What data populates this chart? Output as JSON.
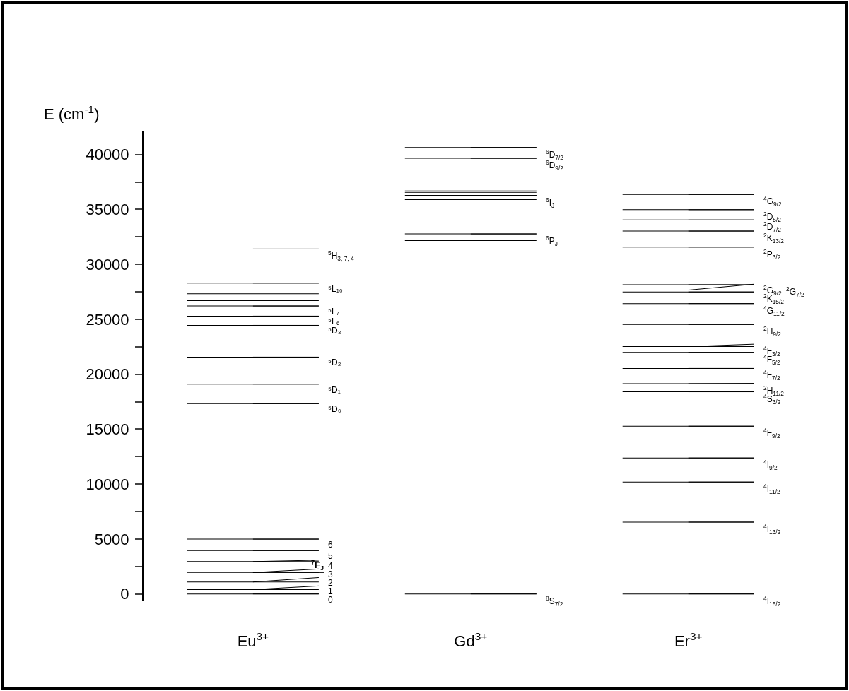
{
  "chart_data": {
    "type": "bar",
    "ylabel": "E (cm$^{-1}$)",
    "categories": [
      "Eu$^{3+}$",
      "Gd$^{3+}$",
      "Er$^{3+}$"
    ],
    "ylim": [
      -600,
      42100
    ],
    "yticks": [
      0,
      {
        "value": 2500,
        "label": null
      },
      5000,
      {
        "value": 7500,
        "label": null
      },
      10000,
      {
        "value": 12500,
        "label": null
      },
      15000,
      {
        "value": 17500,
        "label": null
      },
      20000,
      {
        "value": 22500,
        "label": null
      },
      25000,
      {
        "value": 27500,
        "label": null
      },
      30000,
      {
        "value": 32500,
        "label": null
      },
      35000,
      {
        "value": 37500,
        "label": null
      },
      40000
    ],
    "series": [
      {
        "color": "#000000",
        "x": [
          "Eu$^{3+}$",
          "Eu$^{3+}$",
          "Eu$^{3+}$",
          "Eu$^{3+}$",
          "Eu$^{3+}$",
          "Eu$^{3+}$",
          "Eu$^{3+}$",
          "Eu$^{3+}$",
          "Eu$^{3+}$",
          "Eu$^{3+}$",
          "Eu$^{3+}$",
          "Eu$^{3+}$",
          "Eu$^{3+}$",
          "Eu$^{3+}$",
          "Eu$^{3+}$",
          "Eu$^{3+}$",
          "Eu$^{3+}$",
          "Eu$^{3+}$"
        ],
        "base": [
          0,
          400,
          1090,
          1950,
          2950,
          3950,
          4990,
          17320,
          19100,
          21560,
          24450,
          25290,
          26210,
          26700,
          27230,
          27350,
          28290,
          31400
        ],
        "values": [
          0,
          0,
          0,
          0,
          0,
          0,
          0,
          0,
          0,
          0,
          0,
          0,
          0,
          0,
          0,
          0,
          0,
          0
        ]
      },
      {
        "color": "#000000",
        "x": [
          "Gd$^{3+}$",
          "Gd$^{3+}$",
          "Gd$^{3+}$",
          "Gd$^{3+}$",
          "Gd$^{3+}$",
          "Gd$^{3+}$",
          "Gd$^{3+}$",
          "Gd$^{3+}$",
          "Gd$^{3+}$",
          "Gd$^{3+}$"
        ],
        "base": [
          0,
          32160,
          32770,
          33320,
          35890,
          36280,
          36560,
          36680,
          39650,
          40640
        ],
        "values": [
          0,
          0,
          0,
          0,
          0,
          0,
          0,
          0,
          0,
          0
        ]
      },
      {
        "color": "#000000",
        "x": [
          "Er$^{3+}$",
          "Er$^{3+}$",
          "Er$^{3+}$",
          "Er$^{3+}$",
          "Er$^{3+}$",
          "Er$^{3+}$",
          "Er$^{3+}$",
          "Er$^{3+}$",
          "Er$^{3+}$",
          "Er$^{3+}$",
          "Er$^{3+}$",
          "Er$^{3+}$",
          "Er$^{3+}$",
          "Er$^{3+}$",
          "Er$^{3+}$",
          "Er$^{3+}$",
          "Er$^{3+}$",
          "Er$^{3+}$",
          "Er$^{3+}$",
          "Er$^{3+}$"
        ],
        "base": [
          0,
          6540,
          10190,
          12380,
          15270,
          18400,
          19140,
          20530,
          21990,
          22520,
          24530,
          26430,
          27490,
          27660,
          28140,
          31570,
          33030,
          34040,
          34970,
          36360
        ],
        "values": [
          0,
          0,
          0,
          0,
          0,
          0,
          0,
          0,
          0,
          0,
          0,
          0,
          0,
          0,
          0,
          0,
          0,
          0,
          0,
          0
        ]
      }
    ],
    "annotations": [
      {
        "text": "0",
        "x": "Eu$^{3+}$",
        "y": 0
      },
      {
        "text": "1",
        "x": "Eu$^{3+}$",
        "y": 400
      },
      {
        "text": "2",
        "x": "Eu$^{3+}$",
        "y": 1090
      },
      {
        "text": "3",
        "x": "Eu$^{3+}$",
        "y": 1950
      },
      {
        "text": "$^{7}$F$_{J}$",
        "x": "Eu$^{3+}$",
        "y": 1950
      },
      {
        "text": "4",
        "x": "Eu$^{3+}$",
        "y": 2950
      },
      {
        "text": "5",
        "x": "Eu$^{3+}$",
        "y": 3950
      },
      {
        "text": "6",
        "x": "Eu$^{3+}$",
        "y": 4990
      },
      {
        "text": "⁵D₀",
        "x": "Eu$^{3+}$",
        "y": 17320
      },
      {
        "text": "⁵D₁",
        "x": "Eu$^{3+}$",
        "y": 19100
      },
      {
        "text": "⁵D₂",
        "x": "Eu$^{3+}$",
        "y": 21560
      },
      {
        "text": "⁵D₃",
        "x": "Eu$^{3+}$",
        "y": 24450
      },
      {
        "text": "⁵L₆",
        "x": "Eu$^{3+}$",
        "y": 25290
      },
      {
        "text": "⁵L₇",
        "x": "Eu$^{3+}$",
        "y": 26210
      },
      {
        "text": "⁵L₁₀",
        "x": "Eu$^{3+}$",
        "y": 28290
      },
      {
        "text": "$^{5}$H$_{3, 7, 4}$",
        "x": "Eu$^{3+}$",
        "y": 31400
      },
      {
        "text": "$^{8}$S$_{7/2}$",
        "x": "Gd$^{3+}$",
        "y": 0
      },
      {
        "text": "$^{6}$P$_{J}$",
        "x": "Gd$^{3+}$",
        "y": 32770
      },
      {
        "text": "$^{6}$I$_{J}$",
        "x": "Gd$^{3+}$",
        "y": 36280
      },
      {
        "text": "$^{6}$D$_{9/2}$",
        "x": "Gd$^{3+}$",
        "y": 39650
      },
      {
        "text": "$^{6}$D$_{7/2}$",
        "x": "Gd$^{3+}$",
        "y": 40640
      },
      {
        "text": "$^{4}$I$_{15/2}$",
        "x": "Er$^{3+}$",
        "y": 0
      },
      {
        "text": "$^{4}$I$_{13/2}$",
        "x": "Er$^{3+}$",
        "y": 6540
      },
      {
        "text": "$^{4}$I$_{11/2}$",
        "x": "Er$^{3+}$",
        "y": 10190
      },
      {
        "text": "$^{4}$I$_{9/2}$",
        "x": "Er$^{3+}$",
        "y": 12380
      },
      {
        "text": "$^{4}$F$_{9/2}$",
        "x": "Er$^{3+}$",
        "y": 15270
      },
      {
        "text": "$^{4}$S$_{3/2}$",
        "x": "Er$^{3+}$",
        "y": 18400
      },
      {
        "text": "$^{2}$H$_{11/2}$",
        "x": "Er$^{3+}$",
        "y": 19140
      },
      {
        "text": "$^{4}$F$_{7/2}$",
        "x": "Er$^{3+}$",
        "y": 20530
      },
      {
        "text": "$^{4}$F$_{5/2}$",
        "x": "Er$^{3+}$",
        "y": 21990
      },
      {
        "text": "$^{4}$F$_{3/2}$",
        "x": "Er$^{3+}$",
        "y": 22520
      },
      {
        "text": "$^{2}$H$_{9/2}$",
        "x": "Er$^{3+}$",
        "y": 24530
      },
      {
        "text": "$^{4}$G$_{11/2}$",
        "x": "Er$^{3+}$",
        "y": 26430
      },
      {
        "text": "$^{2}$K$_{15/2}$",
        "x": "Er$^{3+}$",
        "y": 27490
      },
      {
        "text": "$^{2}$G$_{9/2}$",
        "x": "Er$^{3+}$",
        "y": 27660
      },
      {
        "text": "$^{2}$G$_{7/2}$",
        "x": "Er$^{3+}$",
        "y": 28140
      },
      {
        "text": "$^{2}$P$_{3/2}$",
        "x": "Er$^{3+}$",
        "y": 31570
      },
      {
        "text": "$^{2}$K$_{13/2}$",
        "x": "Er$^{3+}$",
        "y": 33030
      },
      {
        "text": "$^{2}$D$_{7/2}$",
        "x": "Er$^{3+}$",
        "y": 34040
      },
      {
        "text": "$^{2}$D$_{5/2}$",
        "x": "Er$^{3+}$",
        "y": 34970
      },
      {
        "text": "$^{4}$G$_{9/2}$",
        "x": "Er$^{3+}$",
        "y": 36360
      }
    ]
  }
}
